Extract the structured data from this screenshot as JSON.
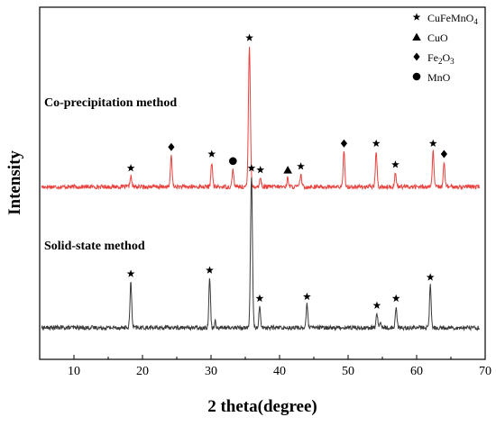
{
  "chart_data": {
    "type": "line",
    "xlabel": "2 theta(degree)",
    "ylabel": "Intensity",
    "xlim": [
      5,
      70
    ],
    "x_ticks": [
      "10",
      "20",
      "30",
      "40",
      "50",
      "60",
      "70"
    ],
    "x_tick_values": [
      10,
      20,
      30,
      40,
      50,
      60,
      70
    ],
    "ylim": [
      0,
      100
    ],
    "y_ticks_shown": false,
    "legend": {
      "position": "top-right",
      "entries": [
        {
          "marker": "star",
          "label": "CuFeMnO",
          "subscript": "4"
        },
        {
          "marker": "triangle",
          "label": "CuO",
          "subscript": ""
        },
        {
          "marker": "diamond",
          "label": "Fe",
          "subscript": "2",
          "label_suffix": "O",
          "subscript2": "3"
        },
        {
          "marker": "circle",
          "label": "MnO",
          "subscript": ""
        }
      ]
    },
    "series": [
      {
        "name": "Co-precipitation method",
        "color": "#e8433f",
        "baseline": 49,
        "peaks": [
          {
            "x": 18.3,
            "h": 3,
            "w": 0.12
          },
          {
            "x": 24.2,
            "h": 9,
            "w": 0.12
          },
          {
            "x": 30.1,
            "h": 7,
            "w": 0.12
          },
          {
            "x": 33.2,
            "h": 5,
            "w": 0.12
          },
          {
            "x": 35.6,
            "h": 40,
            "w": 0.14
          },
          {
            "x": 37.2,
            "h": 2.5,
            "w": 0.12
          },
          {
            "x": 41.2,
            "h": 2.5,
            "w": 0.12
          },
          {
            "x": 43.1,
            "h": 3.5,
            "w": 0.12
          },
          {
            "x": 49.4,
            "h": 10,
            "w": 0.12
          },
          {
            "x": 54.1,
            "h": 10,
            "w": 0.12
          },
          {
            "x": 56.9,
            "h": 4,
            "w": 0.12
          },
          {
            "x": 62.4,
            "h": 10,
            "w": 0.12
          },
          {
            "x": 64.0,
            "h": 7,
            "w": 0.12
          }
        ],
        "markers": [
          {
            "x": 18.3,
            "shape": "star"
          },
          {
            "x": 24.2,
            "shape": "diamond"
          },
          {
            "x": 30.1,
            "shape": "star"
          },
          {
            "x": 33.2,
            "shape": "circle"
          },
          {
            "x": 35.6,
            "shape": "star"
          },
          {
            "x": 37.2,
            "shape": "star"
          },
          {
            "x": 41.2,
            "shape": "triangle"
          },
          {
            "x": 43.1,
            "shape": "star"
          },
          {
            "x": 49.4,
            "shape": "diamond"
          },
          {
            "x": 54.1,
            "shape": "star"
          },
          {
            "x": 56.9,
            "shape": "star"
          },
          {
            "x": 62.4,
            "shape": "star"
          },
          {
            "x": 64.0,
            "shape": "diamond"
          }
        ]
      },
      {
        "name": "Solid-state method",
        "color": "#3a3a3a",
        "baseline": 9,
        "peaks": [
          {
            "x": 18.3,
            "h": 13,
            "w": 0.12
          },
          {
            "x": 29.8,
            "h": 14,
            "w": 0.12
          },
          {
            "x": 30.6,
            "h": 2,
            "w": 0.1
          },
          {
            "x": 35.9,
            "h": 43,
            "w": 0.14
          },
          {
            "x": 37.1,
            "h": 6,
            "w": 0.12
          },
          {
            "x": 44.0,
            "h": 6.5,
            "w": 0.12
          },
          {
            "x": 54.2,
            "h": 4,
            "w": 0.12
          },
          {
            "x": 54.7,
            "h": 1.5,
            "w": 0.1
          },
          {
            "x": 57.0,
            "h": 6,
            "w": 0.12
          },
          {
            "x": 62.0,
            "h": 12,
            "w": 0.12
          }
        ],
        "markers": [
          {
            "x": 18.3,
            "shape": "star"
          },
          {
            "x": 29.8,
            "shape": "star"
          },
          {
            "x": 35.9,
            "shape": "star"
          },
          {
            "x": 37.1,
            "shape": "star"
          },
          {
            "x": 44.0,
            "shape": "star"
          },
          {
            "x": 54.2,
            "shape": "star"
          },
          {
            "x": 57.0,
            "shape": "star"
          },
          {
            "x": 62.0,
            "shape": "star"
          }
        ]
      }
    ]
  }
}
